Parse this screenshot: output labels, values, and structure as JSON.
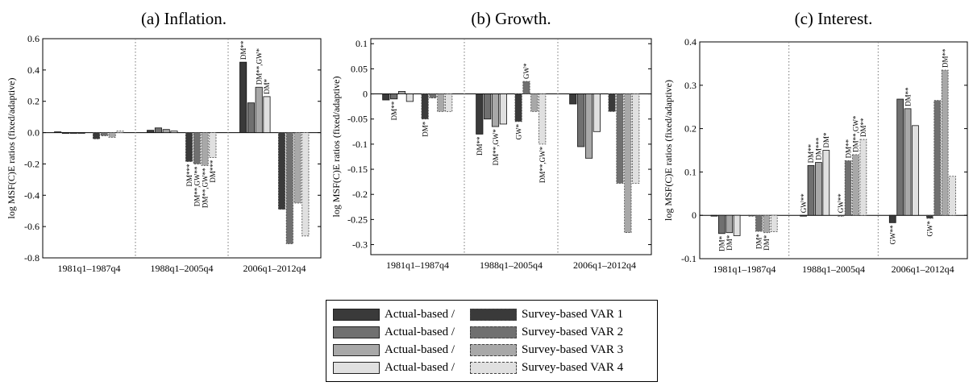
{
  "legend": {
    "actual_label": "Actual-based /",
    "survey_labels": [
      "Survey-based VAR 1",
      "Survey-based VAR 2",
      "Survey-based VAR 3",
      "Survey-based VAR 4"
    ],
    "colors": [
      "#3a3a3a",
      "#707070",
      "#a8a8a8",
      "#e0e0e0"
    ]
  },
  "chart_data": [
    {
      "type": "bar",
      "title": "(a) Inflation.",
      "ylabel": "log MSF(C)E ratios (fixed/adaptive)",
      "categories": [
        "1981q1–1987q4",
        "1988q1–2005q4",
        "2006q1–2012q4"
      ],
      "ylim": [
        -0.8,
        0.6
      ],
      "yticks": [
        -0.8,
        -0.6,
        -0.4,
        -0.2,
        0,
        0.2,
        0.4,
        0.6
      ],
      "series": [
        {
          "group": "Actual-based",
          "values": [
            0.005,
            0.015,
            0.45
          ]
        },
        {
          "group": "Actual-based",
          "values": [
            -0.003,
            0.03,
            0.19
          ]
        },
        {
          "group": "Actual-based",
          "values": [
            -0.005,
            0.02,
            0.29
          ]
        },
        {
          "group": "Actual-based",
          "values": [
            -0.005,
            0.01,
            0.23
          ]
        },
        {
          "group": "Survey-based",
          "values": [
            -0.04,
            -0.185,
            -0.49
          ]
        },
        {
          "group": "Survey-based",
          "values": [
            -0.02,
            -0.2,
            -0.71
          ]
        },
        {
          "group": "Survey-based",
          "values": [
            -0.03,
            -0.21,
            -0.45
          ]
        },
        {
          "group": "Survey-based",
          "values": [
            0.01,
            -0.16,
            -0.66
          ]
        }
      ],
      "annotations": [
        {
          "label": "DM***",
          "bar": 4,
          "cat": 1
        },
        {
          "label": "DM**,GW**",
          "bar": 5,
          "cat": 1
        },
        {
          "label": "DM**,GW**",
          "bar": 6,
          "cat": 1
        },
        {
          "label": "DM***",
          "bar": 7,
          "cat": 1
        },
        {
          "label": "DM**",
          "bar": 0,
          "cat": 2
        },
        {
          "label": "DM**,GW*",
          "bar": 2,
          "cat": 2
        },
        {
          "label": "DM*",
          "bar": 3,
          "cat": 2
        }
      ]
    },
    {
      "type": "bar",
      "title": "(b) Growth.",
      "ylabel": "log MSF(C)E ratios (fixed/adaptive)",
      "categories": [
        "1981q1–1987q4",
        "1988q1–2005q4",
        "2006q1–2012q4"
      ],
      "ylim": [
        -0.32,
        0.11
      ],
      "yticks": [
        -0.3,
        -0.25,
        -0.2,
        -0.15,
        -0.1,
        -0.05,
        0,
        0.05,
        0.1
      ],
      "series": [
        {
          "group": "Actual-based",
          "values": [
            -0.012,
            -0.08,
            -0.02
          ]
        },
        {
          "group": "Actual-based",
          "values": [
            -0.01,
            -0.05,
            -0.105
          ]
        },
        {
          "group": "Actual-based",
          "values": [
            0.005,
            -0.065,
            -0.128
          ]
        },
        {
          "group": "Actual-based",
          "values": [
            -0.015,
            -0.06,
            -0.075
          ]
        },
        {
          "group": "Survey-based",
          "values": [
            -0.05,
            -0.055,
            -0.035
          ]
        },
        {
          "group": "Survey-based",
          "values": [
            -0.008,
            0.025,
            -0.178
          ]
        },
        {
          "group": "Survey-based",
          "values": [
            -0.035,
            -0.035,
            -0.276
          ]
        },
        {
          "group": "Survey-based",
          "values": [
            -0.035,
            -0.1,
            -0.178
          ]
        }
      ],
      "annotations": [
        {
          "label": "DM**",
          "bar": 1,
          "cat": 0
        },
        {
          "label": "DM*",
          "bar": 4,
          "cat": 0
        },
        {
          "label": "DM**",
          "bar": 0,
          "cat": 1
        },
        {
          "label": "DM**,GW*",
          "bar": 2,
          "cat": 1
        },
        {
          "label": "GW*",
          "bar": 4,
          "cat": 1
        },
        {
          "label": "GW*",
          "bar": 5,
          "cat": 1
        },
        {
          "label": "DM**,GW*",
          "bar": 7,
          "cat": 1
        }
      ]
    },
    {
      "type": "bar",
      "title": "(c) Interest.",
      "ylabel": "log MSF(C)E ratios (fixed/adaptive)",
      "categories": [
        "1981q1–1987q4",
        "1988q1–2005q4",
        "2006q1–2012q4"
      ],
      "ylim": [
        -0.1,
        0.4
      ],
      "yticks": [
        -0.1,
        0,
        0.1,
        0.2,
        0.3,
        0.4
      ],
      "series": [
        {
          "group": "Actual-based",
          "values": [
            0,
            0,
            -0.017
          ]
        },
        {
          "group": "Actual-based",
          "values": [
            -0.042,
            0.115,
            0.268
          ]
        },
        {
          "group": "Actual-based",
          "values": [
            -0.04,
            0.122,
            0.246
          ]
        },
        {
          "group": "Actual-based",
          "values": [
            -0.047,
            0.15,
            0.207
          ]
        },
        {
          "group": "Survey-based",
          "values": [
            0,
            0,
            -0.007
          ]
        },
        {
          "group": "Survey-based",
          "values": [
            -0.037,
            0.126,
            0.265
          ]
        },
        {
          "group": "Survey-based",
          "values": [
            -0.04,
            0.14,
            0.335
          ]
        },
        {
          "group": "Survey-based",
          "values": [
            -0.038,
            0.175,
            0.09
          ]
        }
      ],
      "annotations": [
        {
          "label": "DM*",
          "bar": 1,
          "cat": 0
        },
        {
          "label": "DM*",
          "bar": 2,
          "cat": 0
        },
        {
          "label": "DM*",
          "bar": 5,
          "cat": 0
        },
        {
          "label": "DM*",
          "bar": 6,
          "cat": 0
        },
        {
          "label": "GW**",
          "bar": 0,
          "cat": 1
        },
        {
          "label": "DM**",
          "bar": 1,
          "cat": 1
        },
        {
          "label": "DM***",
          "bar": 2,
          "cat": 1
        },
        {
          "label": "DM*",
          "bar": 3,
          "cat": 1
        },
        {
          "label": "GW**",
          "bar": 4,
          "cat": 1
        },
        {
          "label": "DM**",
          "bar": 5,
          "cat": 1
        },
        {
          "label": "DM**,GW*",
          "bar": 6,
          "cat": 1
        },
        {
          "label": "DM**",
          "bar": 7,
          "cat": 1
        },
        {
          "label": "GW**",
          "bar": 0,
          "cat": 2
        },
        {
          "label": "DM**",
          "bar": 2,
          "cat": 2
        },
        {
          "label": "GW*",
          "bar": 4,
          "cat": 2
        },
        {
          "label": "DM**",
          "bar": 6,
          "cat": 2
        }
      ]
    }
  ]
}
